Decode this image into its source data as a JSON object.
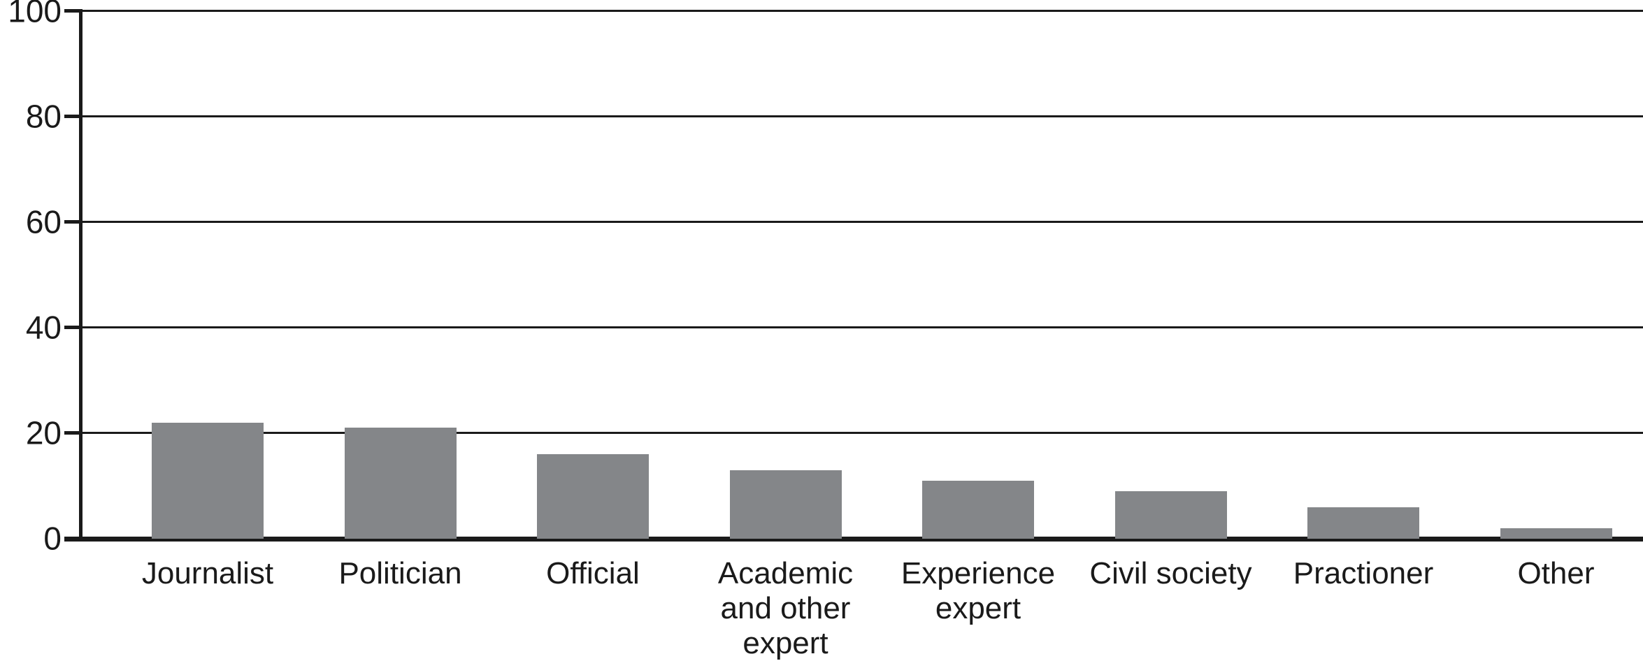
{
  "chart_data": {
    "type": "bar",
    "categories": [
      "Journalist",
      "Politician",
      "Official",
      "Academic\nand other\nexpert",
      "Experience\nexpert",
      "Civil society",
      "Practioner",
      "Other"
    ],
    "values": [
      22,
      21,
      16,
      13,
      11,
      9,
      6,
      2
    ],
    "title": "",
    "xlabel": "",
    "ylabel": "",
    "ylim": [
      0,
      100
    ],
    "yticks": [
      0,
      20,
      40,
      60,
      80,
      100
    ],
    "grid": "horizontal-only",
    "legend": "none",
    "bar_color": "#848689",
    "line_color": "#1a1a1a",
    "text_color": "#1a1a1a",
    "background_color": "#ffffff"
  }
}
